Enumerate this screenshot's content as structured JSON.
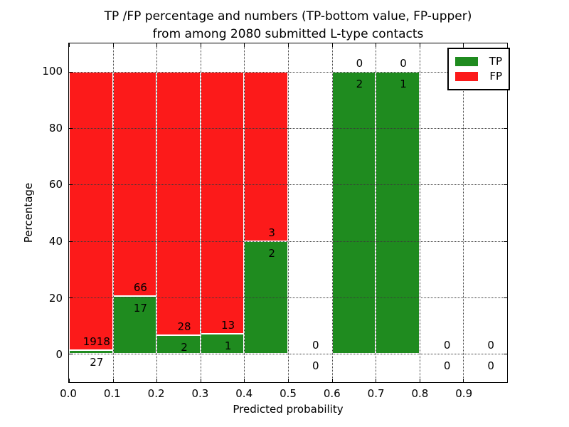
{
  "colors": {
    "tp_green": "#1f8b1f",
    "fp_red": "#fc1a1a",
    "grid": "#3a3a3a",
    "background": "#ffffff",
    "text": "#000000"
  },
  "chart_data": {
    "type": "bar",
    "subtype": "stacked-percentage",
    "title_lines": [
      "TP /FP percentage and numbers (TP-bottom value, FP-upper)",
      "from among 2080 submitted L-type contacts"
    ],
    "xlabel": "Predicted probability",
    "ylabel": "Percentage",
    "xlim": [
      0.0,
      1.0
    ],
    "ylim": [
      -10,
      110
    ],
    "grid": true,
    "x_ticks": [
      "0.0",
      "0.1",
      "0.2",
      "0.3",
      "0.4",
      "0.5",
      "0.6",
      "0.7",
      "0.8",
      "0.9"
    ],
    "y_ticks": [
      "0",
      "20",
      "40",
      "60",
      "80",
      "100"
    ],
    "legend": {
      "position": "upper right",
      "entries": [
        {
          "label": "TP",
          "color": "#1f8b1f"
        },
        {
          "label": "FP",
          "color": "#fc1a1a"
        }
      ]
    },
    "total_contacts": 2080,
    "bin_width": 0.1,
    "bins": [
      {
        "range": [
          0.0,
          0.1
        ],
        "tp": 27,
        "fp": 1918
      },
      {
        "range": [
          0.1,
          0.2
        ],
        "tp": 17,
        "fp": 66
      },
      {
        "range": [
          0.2,
          0.3
        ],
        "tp": 2,
        "fp": 28
      },
      {
        "range": [
          0.3,
          0.4
        ],
        "tp": 1,
        "fp": 13
      },
      {
        "range": [
          0.4,
          0.5
        ],
        "tp": 2,
        "fp": 3
      },
      {
        "range": [
          0.5,
          0.6
        ],
        "tp": 0,
        "fp": 0
      },
      {
        "range": [
          0.6,
          0.7
        ],
        "tp": 2,
        "fp": 0
      },
      {
        "range": [
          0.7,
          0.8
        ],
        "tp": 1,
        "fp": 0
      },
      {
        "range": [
          0.8,
          0.9
        ],
        "tp": 0,
        "fp": 0
      },
      {
        "range": [
          0.9,
          1.0
        ],
        "tp": 0,
        "fp": 0
      }
    ]
  }
}
